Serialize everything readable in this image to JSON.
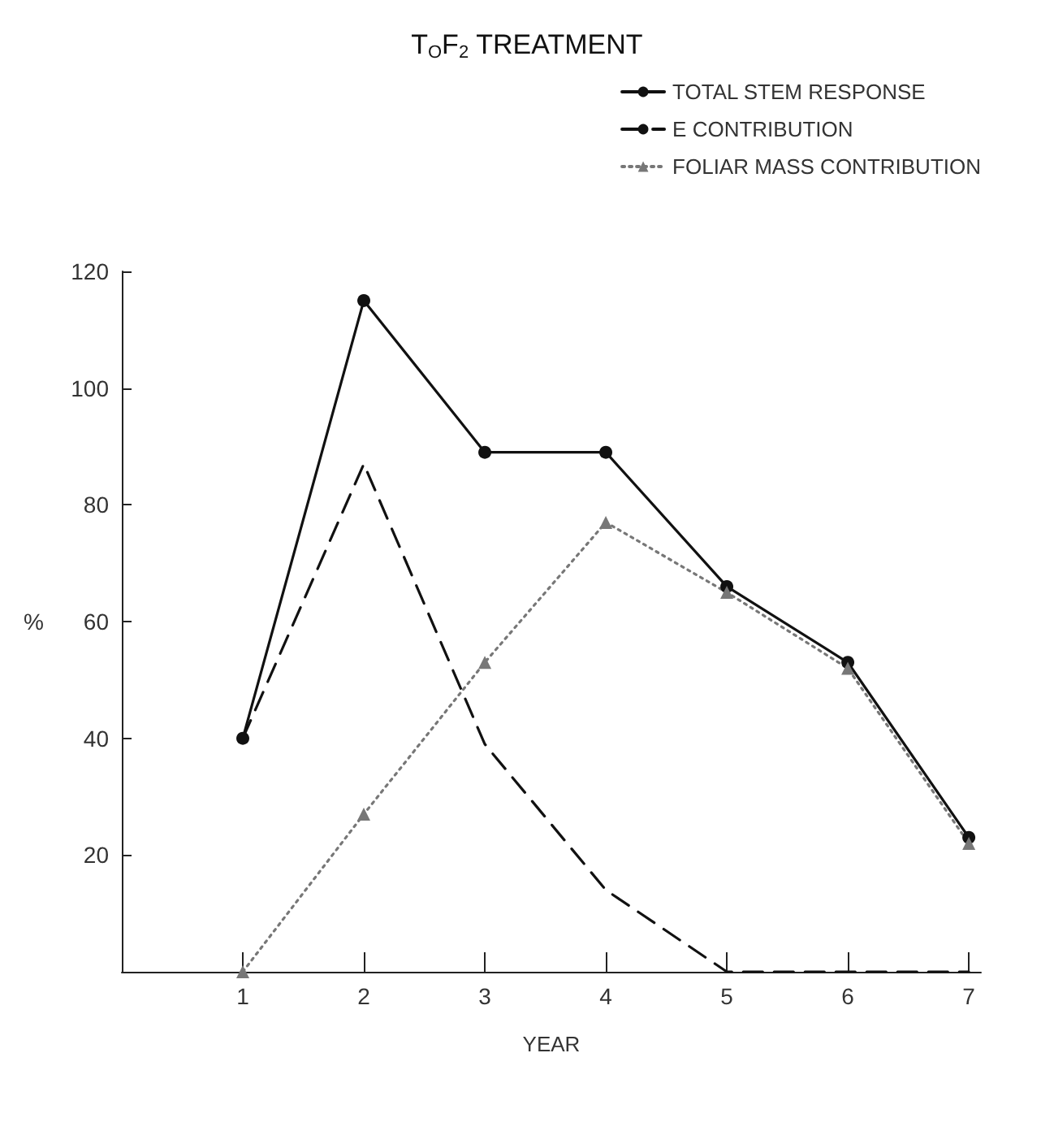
{
  "chart_data": {
    "type": "line",
    "title": "T$_{O}$F$_{2}$ TREATMENT",
    "xlabel": "YEAR",
    "ylabel": "%",
    "x": [
      1,
      2,
      3,
      4,
      5,
      6,
      7
    ],
    "series": [
      {
        "name": "TOTAL STEM RESPONSE",
        "color": "#111111",
        "values": [
          40,
          115,
          89,
          89,
          66,
          53,
          23
        ],
        "marker": "circle",
        "line_style": "solid"
      },
      {
        "name": "E CONTRIBUTION",
        "color": "#111111",
        "values": [
          40,
          87,
          39,
          14,
          0,
          0,
          0
        ],
        "marker": "none",
        "line_style": "dashed"
      },
      {
        "name": "FOLIAR MASS CONTRIBUTION",
        "color": "#777777",
        "values": [
          0,
          27,
          53,
          77,
          65,
          52,
          22
        ],
        "marker": "triangle",
        "line_style": "dotted"
      }
    ],
    "xlim": [
      0,
      7.1
    ],
    "xticks": [
      1,
      2,
      3,
      4,
      5,
      6,
      7
    ],
    "ylim": [
      0,
      120
    ],
    "yticks": [
      20,
      40,
      60,
      80,
      100,
      120
    ],
    "grid": false,
    "legend": "top right"
  }
}
